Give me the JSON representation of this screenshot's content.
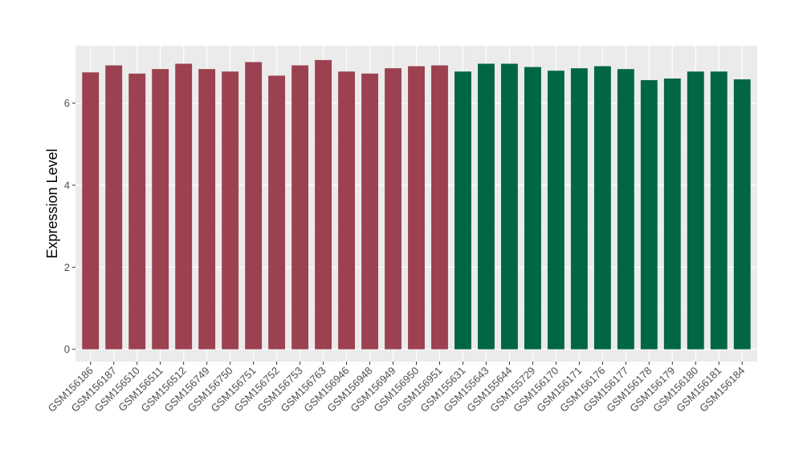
{
  "chart_data": {
    "type": "bar",
    "title": "",
    "xlabel": "",
    "ylabel": "Expression Level",
    "ylim": [
      -0.3,
      7.4
    ],
    "yticks": [
      0,
      2,
      4,
      6
    ],
    "grid": true,
    "legend": "none",
    "categories": [
      "GSM156186",
      "GSM156187",
      "GSM156510",
      "GSM156511",
      "GSM156512",
      "GSM156749",
      "GSM156750",
      "GSM156751",
      "GSM156752",
      "GSM156753",
      "GSM156763",
      "GSM156946",
      "GSM156948",
      "GSM156949",
      "GSM156950",
      "GSM156951",
      "GSM155631",
      "GSM155643",
      "GSM155644",
      "GSM155729",
      "GSM156170",
      "GSM156171",
      "GSM156176",
      "GSM156177",
      "GSM156178",
      "GSM156179",
      "GSM156180",
      "GSM156181",
      "GSM156184"
    ],
    "values": [
      6.75,
      6.92,
      6.72,
      6.83,
      6.96,
      6.83,
      6.77,
      7.0,
      6.67,
      6.92,
      7.05,
      6.77,
      6.72,
      6.85,
      6.9,
      6.92,
      6.77,
      6.96,
      6.96,
      6.88,
      6.79,
      6.85,
      6.9,
      6.83,
      6.56,
      6.6,
      6.77,
      6.77,
      6.58
    ],
    "groups": [
      0,
      0,
      0,
      0,
      0,
      0,
      0,
      0,
      0,
      0,
      0,
      0,
      0,
      0,
      0,
      0,
      1,
      1,
      1,
      1,
      1,
      1,
      1,
      1,
      1,
      1,
      1,
      1,
      1
    ],
    "colors": {
      "group0": "#9b4150",
      "group1": "#006644",
      "panel_bg": "#ebebeb",
      "grid_major": "#ffffff",
      "grid_minor": "#f5f5f5"
    }
  }
}
